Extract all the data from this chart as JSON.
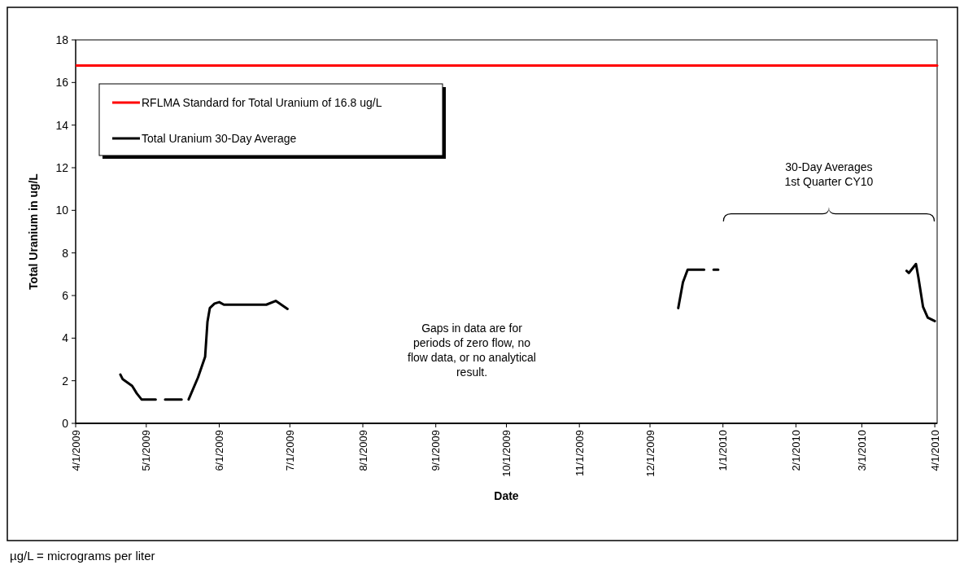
{
  "chart_data": {
    "type": "line",
    "xlabel": "Date",
    "ylabel": "Total Uranium in ug/L",
    "xlim": [
      "2009-04-01",
      "2010-04-02"
    ],
    "ylim": [
      0,
      18
    ],
    "yticks": [
      0,
      2,
      4,
      6,
      8,
      10,
      12,
      14,
      16,
      18
    ],
    "xticks": [
      {
        "value": "2009-04-01",
        "label": "4/1/2009"
      },
      {
        "value": "2009-05-01",
        "label": "5/1/2009"
      },
      {
        "value": "2009-06-01",
        "label": "6/1/2009"
      },
      {
        "value": "2009-07-01",
        "label": "7/1/2009"
      },
      {
        "value": "2009-08-01",
        "label": "8/1/2009"
      },
      {
        "value": "2009-09-01",
        "label": "9/1/2009"
      },
      {
        "value": "2009-10-01",
        "label": "10/1/2009"
      },
      {
        "value": "2009-11-01",
        "label": "11/1/2009"
      },
      {
        "value": "2009-12-01",
        "label": "12/1/2009"
      },
      {
        "value": "2010-01-01",
        "label": "1/1/2010"
      },
      {
        "value": "2010-02-01",
        "label": "2/1/2010"
      },
      {
        "value": "2010-03-01",
        "label": "3/1/2010"
      },
      {
        "value": "2010-04-01",
        "label": "4/1/2010"
      }
    ],
    "legend": "top left",
    "grid": false,
    "marker": "none",
    "line_style": "solid",
    "series": [
      {
        "name": "RFLMA Standard for Total Uranium of 16.8 ug/L",
        "color": "#ff0000",
        "x": [
          "2009-04-01",
          "2010-04-02"
        ],
        "values": [
          16.8,
          16.8
        ]
      },
      {
        "name": "Total Uranium 30-Day Average",
        "color": "#000000",
        "x": [
          "2009-04-20",
          "2009-04-21",
          "2009-04-25",
          "2009-04-27",
          "2009-04-29",
          "2009-05-05",
          "2009-05-07",
          "2009-05-09",
          "2009-05-16",
          "2009-05-18",
          "2009-05-19",
          "2009-05-23",
          "2009-05-26",
          "2009-05-27",
          "2009-05-28",
          "2009-05-30",
          "2009-06-01",
          "2009-06-03",
          "2009-06-21",
          "2009-06-25",
          "2009-06-30",
          "2009-12-10",
          "2009-12-13",
          "2009-12-15",
          "2009-12-17",
          "2009-12-24",
          "2009-12-26",
          "2009-12-28",
          "2009-12-30",
          "2010-03-18",
          "2010-03-20",
          "2010-03-21",
          "2010-03-24",
          "2010-03-25",
          "2010-03-27",
          "2010-03-29",
          "2010-04-01"
        ],
        "values": [
          2.29,
          2.07,
          1.76,
          1.4,
          1.12,
          1.12,
          null,
          1.12,
          1.12,
          null,
          1.12,
          2.16,
          3.12,
          4.77,
          5.41,
          5.62,
          5.69,
          5.57,
          5.57,
          5.75,
          5.37,
          null,
          5.41,
          6.62,
          7.21,
          7.21,
          null,
          7.21,
          7.21,
          null,
          7.16,
          7.06,
          7.48,
          6.87,
          5.47,
          4.96,
          4.8
        ]
      }
    ],
    "annotations": [
      "30-Day Averages\n1st Quarter CY10",
      "Gaps in data are for\nperiods of zero flow, no\nflow data, or no analytical\nresult.",
      "µg/L = micrograms per liter"
    ]
  }
}
